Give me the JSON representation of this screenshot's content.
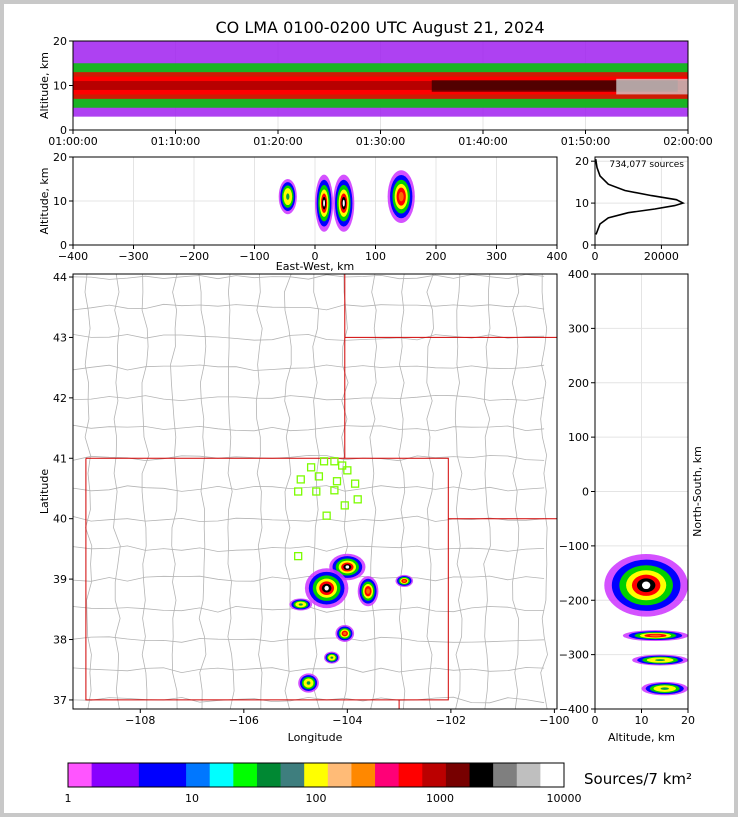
{
  "title": "CO LMA 0100-0200 UTC August 21, 2024",
  "colors": {
    "county_lines": "#b4b4b4",
    "state_lines": "#d00000",
    "station_markers": "#7cfc00"
  },
  "chart_data": [
    {
      "id": "time_height",
      "type": "heatmap",
      "ylabel": "Altitude, km",
      "xlim": [
        "01:00:00",
        "02:00:00"
      ],
      "ylim": [
        0,
        20
      ],
      "x_ticks": [
        "01:00:00",
        "01:10:00",
        "01:20:00",
        "01:30:00",
        "01:40:00",
        "01:50:00",
        "02:00:00"
      ],
      "y_ticks": [
        "0",
        "10",
        "20"
      ],
      "grid": true,
      "bands": [
        {
          "altitude_range_km": [
            3,
            20
          ],
          "level": "low"
        },
        {
          "altitude_range_km": [
            5,
            15
          ],
          "level": "medium"
        },
        {
          "altitude_range_km": [
            7,
            13
          ],
          "level": "high"
        }
      ]
    },
    {
      "id": "ew_height",
      "type": "heatmap",
      "xlabel": "East-West, km",
      "ylabel": "Altitude, km",
      "xlim": [
        -400,
        400
      ],
      "ylim": [
        0,
        20
      ],
      "x_ticks": [
        "−400",
        "−300",
        "−200",
        "−100",
        "0",
        "100",
        "200",
        "300",
        "400"
      ],
      "y_ticks": [
        "0",
        "10",
        "20"
      ],
      "grid": true,
      "cells": [
        {
          "x_km": [
            -60,
            -30
          ],
          "alt_km": [
            7,
            15
          ],
          "level": "low"
        },
        {
          "x_km": [
            0,
            30
          ],
          "alt_km": [
            3,
            16
          ],
          "level": "high"
        },
        {
          "x_km": [
            30,
            65
          ],
          "alt_km": [
            3,
            16
          ],
          "level": "high"
        },
        {
          "x_km": [
            120,
            165
          ],
          "alt_km": [
            5,
            17
          ],
          "level": "medium"
        }
      ]
    },
    {
      "id": "altitude_histogram",
      "type": "line",
      "annotation": "734,077 sources",
      "xlim": [
        0,
        28000
      ],
      "ylim": [
        0,
        21
      ],
      "x_ticks": [
        "0",
        "20000"
      ],
      "y_ticks": [
        "0",
        "10",
        "20"
      ],
      "grid": true,
      "points": [
        {
          "x": 300,
          "y": 2.5
        },
        {
          "x": 1500,
          "y": 5
        },
        {
          "x": 4000,
          "y": 6.5
        },
        {
          "x": 10000,
          "y": 7.7
        },
        {
          "x": 18000,
          "y": 8.6
        },
        {
          "x": 24000,
          "y": 9.4
        },
        {
          "x": 26500,
          "y": 10
        },
        {
          "x": 24500,
          "y": 10.8
        },
        {
          "x": 17000,
          "y": 11.8
        },
        {
          "x": 9000,
          "y": 13
        },
        {
          "x": 4000,
          "y": 14.5
        },
        {
          "x": 1500,
          "y": 16.5
        },
        {
          "x": 600,
          "y": 18.5
        },
        {
          "x": 200,
          "y": 20.5
        }
      ]
    },
    {
      "id": "plan_map",
      "type": "scatter",
      "xlabel": "Longitude",
      "ylabel": "Latitude",
      "xlim": [
        -109.3,
        -99.95
      ],
      "ylim": [
        36.85,
        44.05
      ],
      "x_ticks": [
        "−108",
        "−106",
        "−104",
        "−102",
        "−100"
      ],
      "y_ticks": [
        "37",
        "38",
        "39",
        "40",
        "41",
        "42",
        "43",
        "44"
      ],
      "state_lines": [
        [
          [
            -109.05,
            41
          ],
          [
            -102.05,
            41
          ],
          [
            -102.05,
            37
          ],
          [
            -109.05,
            37
          ],
          [
            -109.05,
            41
          ]
        ],
        [
          [
            -104.05,
            41
          ],
          [
            -104.05,
            44.05
          ]
        ],
        [
          [
            -104.05,
            43
          ],
          [
            -99.95,
            43
          ]
        ],
        [
          [
            -102.05,
            40
          ],
          [
            -99.95,
            40
          ]
        ],
        [
          [
            -103,
            37
          ],
          [
            -103,
            36.85
          ]
        ]
      ],
      "stations": [
        {
          "lon": -104.45,
          "lat": 40.95
        },
        {
          "lon": -104.25,
          "lat": 40.95
        },
        {
          "lon": -104.7,
          "lat": 40.85
        },
        {
          "lon": -104.1,
          "lat": 40.88
        },
        {
          "lon": -104.0,
          "lat": 40.8
        },
        {
          "lon": -104.9,
          "lat": 40.65
        },
        {
          "lon": -104.55,
          "lat": 40.7
        },
        {
          "lon": -104.2,
          "lat": 40.62
        },
        {
          "lon": -103.85,
          "lat": 40.58
        },
        {
          "lon": -104.95,
          "lat": 40.45
        },
        {
          "lon": -104.6,
          "lat": 40.45
        },
        {
          "lon": -104.25,
          "lat": 40.47
        },
        {
          "lon": -103.8,
          "lat": 40.32
        },
        {
          "lon": -104.05,
          "lat": 40.22
        },
        {
          "lon": -104.4,
          "lat": 40.05
        },
        {
          "lon": -104.95,
          "lat": 39.38
        }
      ],
      "cells": [
        {
          "lon": -104.0,
          "lat": 39.2,
          "rx": 0.35,
          "ry": 0.22,
          "level": "high"
        },
        {
          "lon": -104.4,
          "lat": 38.85,
          "rx": 0.42,
          "ry": 0.33,
          "level": "high"
        },
        {
          "lon": -103.6,
          "lat": 38.8,
          "rx": 0.2,
          "ry": 0.25,
          "level": "medium"
        },
        {
          "lon": -102.9,
          "lat": 38.97,
          "rx": 0.17,
          "ry": 0.1,
          "level": "medium"
        },
        {
          "lon": -104.05,
          "lat": 38.1,
          "rx": 0.18,
          "ry": 0.14,
          "level": "medium"
        },
        {
          "lon": -104.3,
          "lat": 37.7,
          "rx": 0.15,
          "ry": 0.1,
          "level": "low"
        },
        {
          "lon": -104.75,
          "lat": 37.28,
          "rx": 0.2,
          "ry": 0.16,
          "level": "low"
        },
        {
          "lon": -104.9,
          "lat": 38.58,
          "rx": 0.22,
          "ry": 0.1,
          "level": "low"
        }
      ]
    },
    {
      "id": "ns_height",
      "type": "heatmap",
      "xlabel": "Altitude, km",
      "ylabel": "North-South, km",
      "xlim": [
        0,
        20
      ],
      "ylim": [
        -400,
        400
      ],
      "x_ticks": [
        "0",
        "10",
        "20"
      ],
      "y_ticks": [
        "−400",
        "−300",
        "−200",
        "−100",
        "0",
        "100",
        "200",
        "300",
        "400"
      ],
      "grid": true,
      "cells": [
        {
          "alt_km": [
            2,
            20
          ],
          "ns_km": [
            -115,
            -230
          ],
          "level": "high"
        },
        {
          "alt_km": [
            6,
            20
          ],
          "ns_km": [
            -255,
            -275
          ],
          "level": "medium"
        },
        {
          "alt_km": [
            8,
            20
          ],
          "ns_km": [
            -300,
            -320
          ],
          "level": "low"
        },
        {
          "alt_km": [
            10,
            20
          ],
          "ns_km": [
            -350,
            -375
          ],
          "level": "low"
        }
      ]
    },
    {
      "id": "colorbar",
      "type": "heatmap",
      "unit_label": "Sources/7 km²",
      "scale": "log",
      "range": [
        1,
        10000
      ],
      "tick_labels": [
        "1",
        "10",
        "100",
        "1000",
        "10000"
      ],
      "colors": [
        "#ff55ff",
        "#8800ff",
        "#8800ff",
        "#0000ff",
        "#0000ff",
        "#0077ff",
        "#00ffff",
        "#00ff00",
        "#008833",
        "#3e7e7e",
        "#ffff00",
        "#ffbb77",
        "#ff8800",
        "#ff0077",
        "#ff0000",
        "#bb0000",
        "#770000",
        "#000000",
        "#7f7f7f",
        "#bfbfbf",
        "#ffffff"
      ],
      "legend": "bottom"
    }
  ]
}
